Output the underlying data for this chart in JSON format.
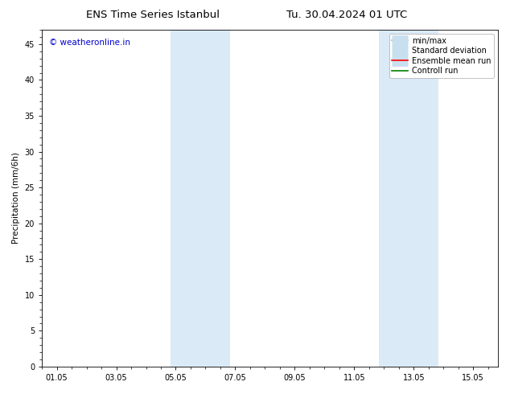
{
  "title_left": "ENS Time Series Istanbul",
  "title_right": "Tu. 30.04.2024 01 UTC",
  "ylabel": "Precipitation (mm/6h)",
  "xlabel": "",
  "bg_color": "#ffffff",
  "plot_bg_color": "#ffffff",
  "ylim": [
    0,
    47
  ],
  "yticks": [
    0,
    5,
    10,
    15,
    20,
    25,
    30,
    35,
    40,
    45
  ],
  "xtick_labels": [
    "01.05",
    "03.05",
    "05.05",
    "07.05",
    "09.05",
    "11.05",
    "13.05",
    "15.05"
  ],
  "xtick_positions": [
    0,
    2,
    4,
    6,
    8,
    10,
    12,
    14
  ],
  "xmin": -0.5,
  "xmax": 14.83,
  "shaded_bands": [
    {
      "xmin": 3.83,
      "xmax": 5.83,
      "color": "#daeaf7"
    },
    {
      "xmin": 10.83,
      "xmax": 12.83,
      "color": "#daeaf7"
    }
  ],
  "legend_items": [
    {
      "label": "min/max",
      "color": "#aaaaaa",
      "lw": 1.2,
      "style": "line_with_caps"
    },
    {
      "label": "Standard deviation",
      "color": "#c8dff0",
      "lw": 7,
      "style": "thick"
    },
    {
      "label": "Ensemble mean run",
      "color": "#ff0000",
      "lw": 1.2,
      "style": "line"
    },
    {
      "label": "Controll run",
      "color": "#008000",
      "lw": 1.2,
      "style": "line"
    }
  ],
  "watermark_text": "© weatheronline.in",
  "watermark_color": "#0000cc",
  "watermark_fontsize": 7.5,
  "title_fontsize": 9.5,
  "axis_fontsize": 7.5,
  "tick_fontsize": 7,
  "legend_fontsize": 7
}
